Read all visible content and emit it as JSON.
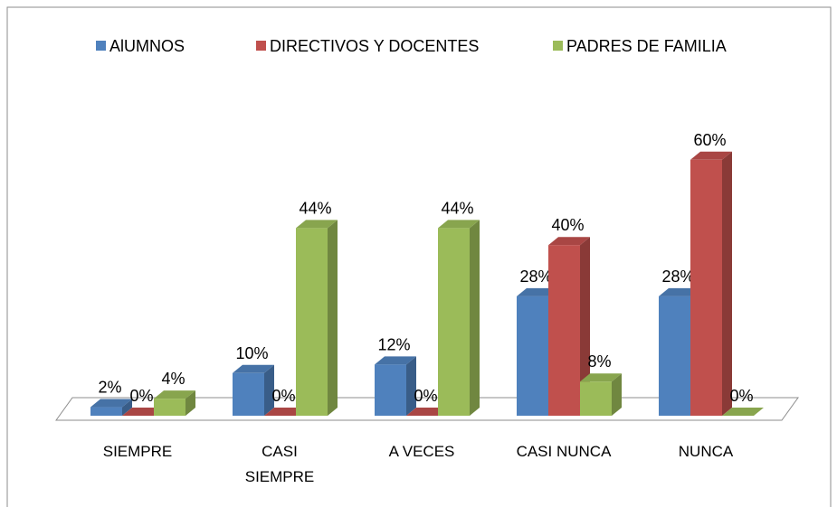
{
  "chart_data": {
    "type": "bar3d",
    "categories": [
      "SIEMPRE",
      "CASI SIEMPRE",
      "A VECES",
      "CASI NUNCA",
      "NUNCA"
    ],
    "series": [
      {
        "name": "AlUMNOS",
        "color": "#4f81bd",
        "values": [
          2,
          10,
          12,
          28,
          28
        ],
        "value_labels": [
          "2%",
          "10%",
          "12%",
          "28%",
          "28%"
        ]
      },
      {
        "name": "DIRECTIVOS Y DOCENTES",
        "color": "#c0504d",
        "values": [
          0,
          0,
          0,
          40,
          60
        ],
        "value_labels": [
          "0%",
          "0%",
          "0%",
          "40%",
          "60%"
        ]
      },
      {
        "name": "PADRES DE FAMILIA",
        "color": "#9bbb59",
        "values": [
          4,
          44,
          44,
          8,
          0
        ],
        "value_labels": [
          "4%",
          "44%",
          "44%",
          "8%",
          "0%"
        ]
      }
    ],
    "legend": "top"
  }
}
